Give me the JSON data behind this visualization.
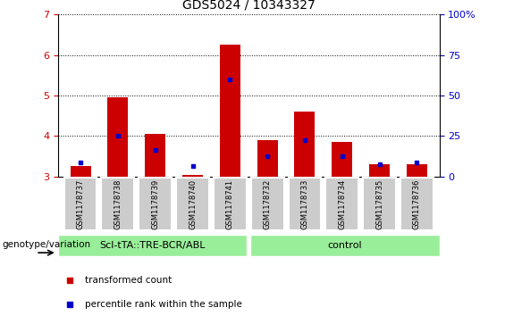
{
  "title": "GDS5024 / 10343327",
  "samples": [
    "GSM1178737",
    "GSM1178738",
    "GSM1178739",
    "GSM1178740",
    "GSM1178741",
    "GSM1178732",
    "GSM1178733",
    "GSM1178734",
    "GSM1178735",
    "GSM1178736"
  ],
  "red_values": [
    3.25,
    4.95,
    4.05,
    3.05,
    6.25,
    3.9,
    4.6,
    3.85,
    3.3,
    3.3
  ],
  "blue_values": [
    3.35,
    4.0,
    3.65,
    3.25,
    5.4,
    3.5,
    3.9,
    3.5,
    3.3,
    3.35
  ],
  "ymin": 3.0,
  "ymax": 7.0,
  "yticks": [
    3,
    4,
    5,
    6,
    7
  ],
  "right_yticks": [
    0,
    25,
    50,
    75,
    100
  ],
  "bar_color": "#cc0000",
  "blue_color": "#0000cc",
  "group1_label": "Scl-tTA::TRE-BCR/ABL",
  "group2_label": "control",
  "group_bg_color": "#99ee99",
  "tick_label_color": "#cc0000",
  "right_tick_color": "#0000cc",
  "bar_bottom": 3.0,
  "bar_width": 0.55,
  "legend_red_label": "transformed count",
  "legend_blue_label": "percentile rank within the sample",
  "genotype_label": "genotype/variation",
  "xticklabel_bg": "#cccccc",
  "title_fontsize": 10,
  "tick_fontsize": 8,
  "sample_fontsize": 6,
  "group_fontsize": 8,
  "legend_fontsize": 7.5
}
